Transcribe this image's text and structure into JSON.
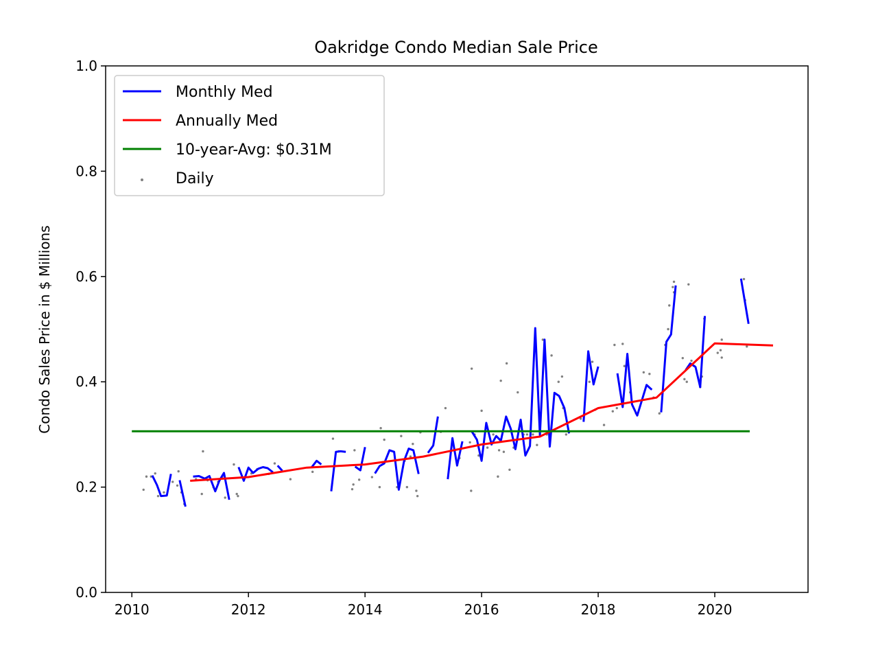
{
  "chart_data": {
    "type": "line",
    "title": "Oakridge Condo Median Sale Price",
    "xlabel": "",
    "ylabel": "Condo Sales Price in $ Millions",
    "xlim": [
      2009.55,
      2021.6
    ],
    "ylim": [
      0.0,
      1.0
    ],
    "x_ticks": [
      "2010",
      "2012",
      "2014",
      "2016",
      "2018",
      "2020"
    ],
    "y_ticks": [
      "0.0",
      "0.2",
      "0.4",
      "0.6",
      "0.8",
      "1.0"
    ],
    "legend_position": "top-left",
    "grid": false,
    "colors": {
      "monthly": "#0000ff",
      "annual": "#ff0000",
      "average": "#008000",
      "daily": "#808080"
    },
    "legend": [
      {
        "label": "Monthly Med",
        "kind": "line",
        "color": "#0000ff"
      },
      {
        "label": "Annually Med",
        "kind": "line",
        "color": "#ff0000"
      },
      {
        "label": "10-year-Avg: $0.31M",
        "kind": "line",
        "color": "#008000"
      },
      {
        "label": "Daily",
        "kind": "dot",
        "color": "#808080"
      }
    ],
    "series": [
      {
        "name": "Monthly Med",
        "kind": "monthly",
        "segments": [
          [
            [
              2010.35,
              0.222
            ],
            [
              2010.43,
              0.204
            ],
            [
              2010.5,
              0.183
            ],
            [
              2010.6,
              0.184
            ],
            [
              2010.67,
              0.225
            ]
          ],
          [
            [
              2010.82,
              0.213
            ],
            [
              2010.92,
              0.163
            ]
          ],
          [
            [
              2011.05,
              0.22
            ],
            [
              2011.15,
              0.221
            ],
            [
              2011.25,
              0.216
            ],
            [
              2011.33,
              0.221
            ],
            [
              2011.43,
              0.192
            ],
            [
              2011.5,
              0.212
            ],
            [
              2011.58,
              0.227
            ],
            [
              2011.67,
              0.176
            ]
          ],
          [
            [
              2011.83,
              0.238
            ],
            [
              2011.92,
              0.212
            ],
            [
              2012.0,
              0.237
            ],
            [
              2012.08,
              0.227
            ],
            [
              2012.17,
              0.235
            ],
            [
              2012.25,
              0.238
            ],
            [
              2012.33,
              0.236
            ],
            [
              2012.42,
              0.228
            ]
          ],
          [
            [
              2012.5,
              0.241
            ],
            [
              2012.58,
              0.231
            ]
          ],
          [
            [
              2013.08,
              0.237
            ],
            [
              2013.17,
              0.25
            ],
            [
              2013.25,
              0.243
            ]
          ],
          [
            [
              2013.42,
              0.192
            ],
            [
              2013.5,
              0.267
            ],
            [
              2013.58,
              0.268
            ],
            [
              2013.67,
              0.267
            ]
          ],
          [
            [
              2013.83,
              0.239
            ],
            [
              2013.92,
              0.232
            ],
            [
              2014.0,
              0.276
            ]
          ],
          [
            [
              2014.17,
              0.226
            ],
            [
              2014.25,
              0.24
            ],
            [
              2014.33,
              0.245
            ],
            [
              2014.42,
              0.27
            ],
            [
              2014.5,
              0.267
            ],
            [
              2014.58,
              0.195
            ],
            [
              2014.67,
              0.25
            ],
            [
              2014.75,
              0.273
            ],
            [
              2014.83,
              0.27
            ],
            [
              2014.92,
              0.225
            ]
          ],
          [
            [
              2015.08,
              0.265
            ],
            [
              2015.17,
              0.279
            ],
            [
              2015.25,
              0.334
            ]
          ],
          [
            [
              2015.42,
              0.215
            ],
            [
              2015.5,
              0.293
            ],
            [
              2015.58,
              0.241
            ],
            [
              2015.67,
              0.287
            ]
          ],
          [
            [
              2015.83,
              0.306
            ],
            [
              2015.92,
              0.29
            ],
            [
              2016.0,
              0.25
            ],
            [
              2016.08,
              0.322
            ],
            [
              2016.17,
              0.281
            ],
            [
              2016.25,
              0.297
            ],
            [
              2016.33,
              0.288
            ],
            [
              2016.42,
              0.334
            ],
            [
              2016.5,
              0.311
            ],
            [
              2016.58,
              0.272
            ],
            [
              2016.67,
              0.328
            ],
            [
              2016.75,
              0.26
            ],
            [
              2016.83,
              0.278
            ],
            [
              2016.92,
              0.502
            ],
            [
              2017.0,
              0.299
            ],
            [
              2017.08,
              0.48
            ],
            [
              2017.17,
              0.277
            ],
            [
              2017.25,
              0.379
            ],
            [
              2017.33,
              0.373
            ],
            [
              2017.42,
              0.35
            ],
            [
              2017.5,
              0.302
            ]
          ],
          [
            [
              2017.75,
              0.324
            ],
            [
              2017.83,
              0.458
            ],
            [
              2017.92,
              0.395
            ],
            [
              2018.0,
              0.429
            ]
          ],
          [
            [
              2018.33,
              0.416
            ],
            [
              2018.42,
              0.352
            ],
            [
              2018.5,
              0.453
            ],
            [
              2018.58,
              0.357
            ],
            [
              2018.67,
              0.336
            ],
            [
              2018.75,
              0.365
            ],
            [
              2018.83,
              0.394
            ],
            [
              2018.92,
              0.385
            ]
          ],
          [
            [
              2019.08,
              0.342
            ],
            [
              2019.17,
              0.476
            ],
            [
              2019.25,
              0.49
            ],
            [
              2019.33,
              0.583
            ]
          ],
          [
            [
              2019.5,
              0.422
            ],
            [
              2019.58,
              0.435
            ],
            [
              2019.67,
              0.428
            ],
            [
              2019.75,
              0.39
            ],
            [
              2019.83,
              0.525
            ]
          ],
          [
            [
              2020.45,
              0.596
            ],
            [
              2020.58,
              0.51
            ]
          ]
        ]
      },
      {
        "name": "Annually Med",
        "kind": "annual",
        "points": [
          [
            2011.0,
            0.212
          ],
          [
            2012.0,
            0.219
          ],
          [
            2013.0,
            0.237
          ],
          [
            2014.0,
            0.243
          ],
          [
            2015.0,
            0.258
          ],
          [
            2016.0,
            0.281
          ],
          [
            2017.0,
            0.296
          ],
          [
            2018.0,
            0.35
          ],
          [
            2019.0,
            0.37
          ],
          [
            2020.0,
            0.473
          ],
          [
            2021.0,
            0.469
          ]
        ]
      },
      {
        "name": "10-year-Avg: $0.31M",
        "kind": "average",
        "points": [
          [
            2010.0,
            0.306
          ],
          [
            2020.6,
            0.306
          ]
        ]
      },
      {
        "name": "Daily",
        "kind": "daily",
        "points": [
          [
            2010.2,
            0.195
          ],
          [
            2010.25,
            0.22
          ],
          [
            2010.33,
            0.22
          ],
          [
            2010.4,
            0.226
          ],
          [
            2010.45,
            0.183
          ],
          [
            2010.55,
            0.19
          ],
          [
            2010.7,
            0.21
          ],
          [
            2010.78,
            0.203
          ],
          [
            2010.8,
            0.23
          ],
          [
            2010.85,
            0.19
          ],
          [
            2010.9,
            0.168
          ],
          [
            2011.1,
            0.215
          ],
          [
            2011.2,
            0.187
          ],
          [
            2011.22,
            0.268
          ],
          [
            2011.3,
            0.213
          ],
          [
            2011.4,
            0.2
          ],
          [
            2011.48,
            0.21
          ],
          [
            2011.55,
            0.22
          ],
          [
            2011.6,
            0.18
          ],
          [
            2011.75,
            0.243
          ],
          [
            2011.8,
            0.187
          ],
          [
            2011.82,
            0.183
          ],
          [
            2012.05,
            0.226
          ],
          [
            2012.15,
            0.234
          ],
          [
            2012.35,
            0.225
          ],
          [
            2012.45,
            0.245
          ],
          [
            2012.72,
            0.215
          ],
          [
            2013.1,
            0.229
          ],
          [
            2013.45,
            0.292
          ],
          [
            2013.55,
            0.268
          ],
          [
            2013.78,
            0.196
          ],
          [
            2013.8,
            0.205
          ],
          [
            2013.82,
            0.27
          ],
          [
            2013.9,
            0.214
          ],
          [
            2014.12,
            0.219
          ],
          [
            2014.25,
            0.2
          ],
          [
            2014.27,
            0.312
          ],
          [
            2014.33,
            0.29
          ],
          [
            2014.55,
            0.2
          ],
          [
            2014.62,
            0.297
          ],
          [
            2014.68,
            0.25
          ],
          [
            2014.72,
            0.2
          ],
          [
            2014.78,
            0.258
          ],
          [
            2014.82,
            0.282
          ],
          [
            2014.88,
            0.193
          ],
          [
            2014.9,
            0.183
          ],
          [
            2014.95,
            0.304
          ],
          [
            2015.3,
            0.305
          ],
          [
            2015.38,
            0.35
          ],
          [
            2015.5,
            0.29
          ],
          [
            2015.62,
            0.255
          ],
          [
            2015.8,
            0.285
          ],
          [
            2015.82,
            0.193
          ],
          [
            2015.83,
            0.425
          ],
          [
            2015.88,
            0.3
          ],
          [
            2015.95,
            0.26
          ],
          [
            2016.0,
            0.345
          ],
          [
            2016.1,
            0.275
          ],
          [
            2016.2,
            0.3
          ],
          [
            2016.28,
            0.22
          ],
          [
            2016.3,
            0.27
          ],
          [
            2016.33,
            0.402
          ],
          [
            2016.38,
            0.267
          ],
          [
            2016.43,
            0.435
          ],
          [
            2016.48,
            0.233
          ],
          [
            2016.55,
            0.275
          ],
          [
            2016.62,
            0.38
          ],
          [
            2016.72,
            0.3
          ],
          [
            2016.78,
            0.3
          ],
          [
            2016.88,
            0.3
          ],
          [
            2016.95,
            0.28
          ],
          [
            2017.05,
            0.48
          ],
          [
            2017.12,
            0.3
          ],
          [
            2017.2,
            0.45
          ],
          [
            2017.32,
            0.4
          ],
          [
            2017.38,
            0.41
          ],
          [
            2017.4,
            0.35
          ],
          [
            2017.45,
            0.3
          ],
          [
            2017.7,
            0.33
          ],
          [
            2017.85,
            0.4
          ],
          [
            2017.9,
            0.438
          ],
          [
            2017.95,
            0.347
          ],
          [
            2018.1,
            0.318
          ],
          [
            2018.25,
            0.344
          ],
          [
            2018.28,
            0.47
          ],
          [
            2018.32,
            0.35
          ],
          [
            2018.42,
            0.472
          ],
          [
            2018.45,
            0.43
          ],
          [
            2018.55,
            0.38
          ],
          [
            2018.65,
            0.34
          ],
          [
            2018.78,
            0.418
          ],
          [
            2018.88,
            0.415
          ],
          [
            2018.95,
            0.37
          ],
          [
            2019.05,
            0.34
          ],
          [
            2019.15,
            0.47
          ],
          [
            2019.2,
            0.5
          ],
          [
            2019.22,
            0.545
          ],
          [
            2019.28,
            0.58
          ],
          [
            2019.3,
            0.57
          ],
          [
            2019.3,
            0.59
          ],
          [
            2019.45,
            0.445
          ],
          [
            2019.48,
            0.405
          ],
          [
            2019.52,
            0.4
          ],
          [
            2019.55,
            0.585
          ],
          [
            2019.6,
            0.44
          ],
          [
            2019.65,
            0.43
          ],
          [
            2019.75,
            0.39
          ],
          [
            2019.78,
            0.41
          ],
          [
            2019.82,
            0.52
          ],
          [
            2020.05,
            0.455
          ],
          [
            2020.1,
            0.46
          ],
          [
            2020.12,
            0.48
          ],
          [
            2020.12,
            0.446
          ],
          [
            2020.5,
            0.595
          ],
          [
            2020.52,
            0.555
          ],
          [
            2020.55,
            0.467
          ]
        ]
      }
    ]
  }
}
